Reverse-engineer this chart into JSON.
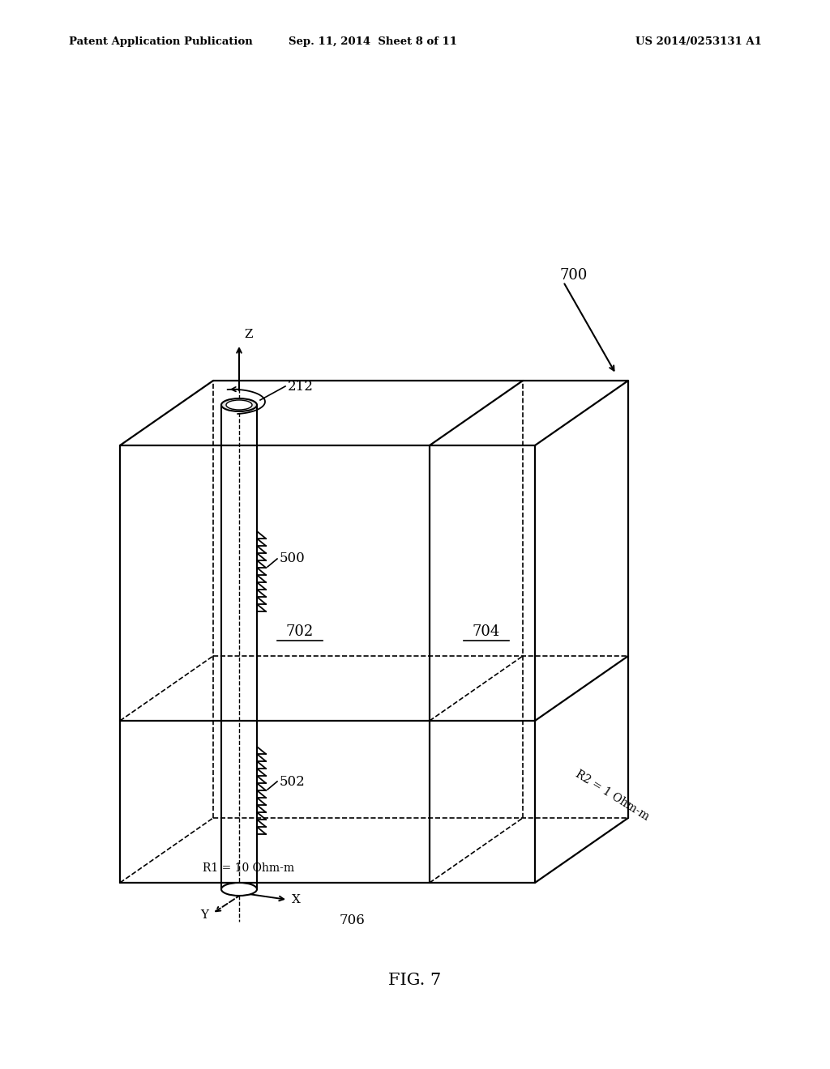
{
  "bg_color": "#ffffff",
  "line_color": "#000000",
  "header_left": "Patent Application Publication",
  "header_center": "Sep. 11, 2014  Sheet 8 of 11",
  "header_right": "US 2014/0253131 A1",
  "label_700": "700",
  "label_702": "702",
  "label_704": "704",
  "label_706": "706",
  "label_212": "212",
  "label_500": "500",
  "label_502": "502",
  "label_z": "Z",
  "label_y": "Y",
  "label_x": "X",
  "label_r1": "R1 = 10 Ohm-m",
  "label_r2": "R2 = 1 Ohm-m",
  "caption": "FIG. 7"
}
